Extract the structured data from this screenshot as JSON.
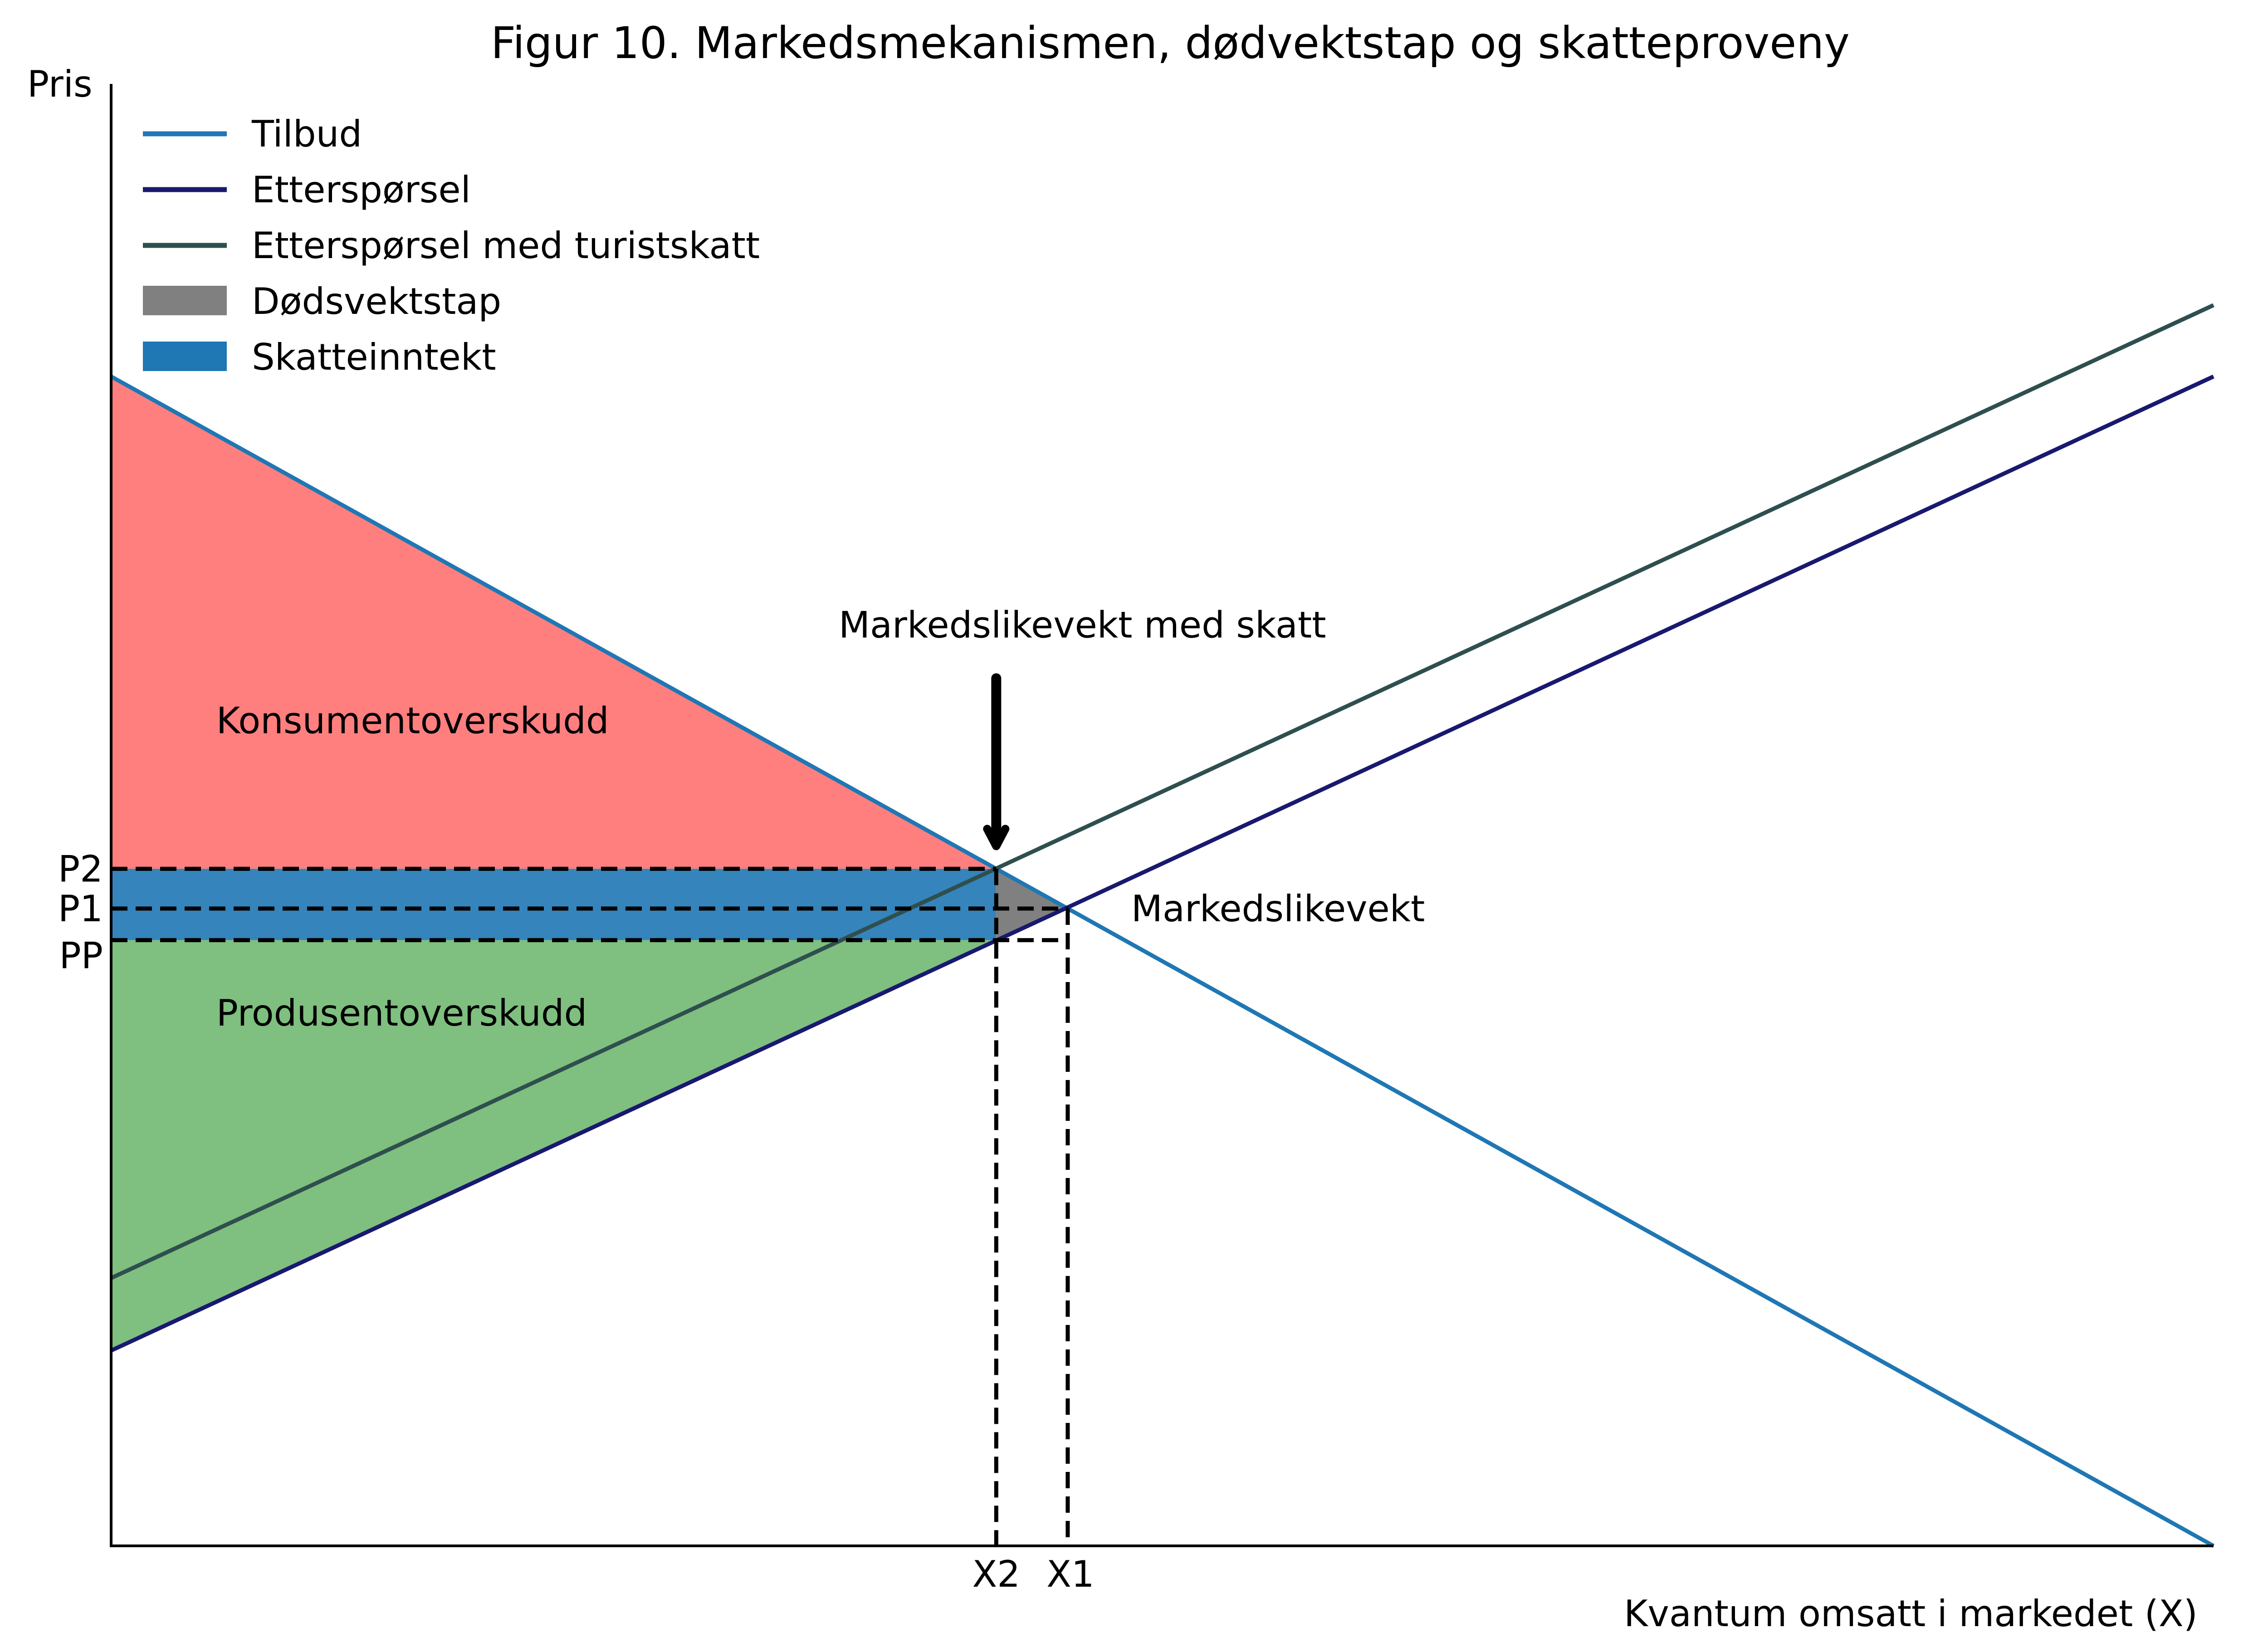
{
  "chart_data": {
    "type": "line",
    "title": "Figur 10. Markedsmekanismen, dødvektstap og skatteproveny",
    "ylabel": "Pris",
    "xlabel": "Kvantum omsatt i markedet (X)",
    "xlim": [
      0,
      100
    ],
    "ylim": [
      0,
      100
    ],
    "grid": false,
    "legend_placement": "top-left",
    "series": [
      {
        "name": "Tilbud",
        "color": "#1f77b4",
        "x": [
          0,
          100
        ],
        "y": [
          100,
          0
        ]
      },
      {
        "name": "Etterspørsel",
        "color": "#191970",
        "x": [
          0,
          100
        ],
        "y": [
          16.7,
          100
        ]
      },
      {
        "name": "Etterspørsel med turistskatt",
        "color": "#2f4f4f",
        "x": [
          0,
          100
        ],
        "y": [
          22.9,
          106.1
        ]
      }
    ],
    "areas": [
      {
        "name": "Dødsvektstap",
        "color": "#808080",
        "legend": true
      },
      {
        "name": "Skatteinntekt",
        "color": "#1f77b4",
        "legend": true
      },
      {
        "name": "",
        "color": "#ff0000",
        "legend": false
      },
      {
        "name": "",
        "color": "#008000",
        "legend": false
      }
    ],
    "region_labels": [
      {
        "text": "Konsumentoverskudd",
        "x": 5,
        "y": 69.5
      },
      {
        "text": "Produsentoverskudd",
        "x": 5,
        "y": 44.5
      }
    ],
    "points": {
      "X1": 45.5,
      "P1": 54.5,
      "X2": 42.1,
      "P2": 57.9,
      "PP": 51.8
    },
    "tick_labels": {
      "y": [
        "P2",
        "P1",
        "PP"
      ],
      "x": [
        "X2",
        "X1"
      ]
    },
    "annotations": [
      {
        "text": "Markedslikevekt med skatt"
      },
      {
        "text": "Markedslikevekt"
      }
    ]
  }
}
